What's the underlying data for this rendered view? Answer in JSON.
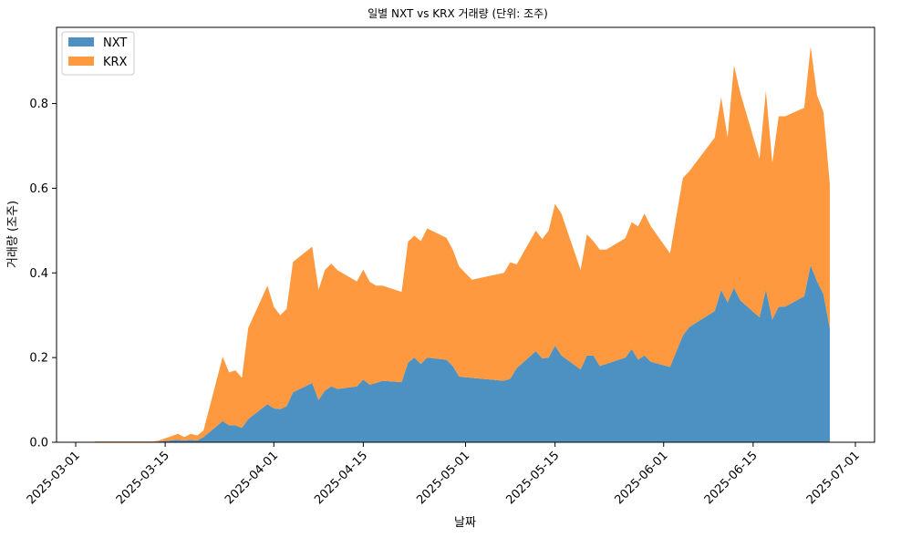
{
  "chart_data": {
    "type": "area",
    "stacked": true,
    "title": "일별 NXT vs KRX 거래량 (단위: 조주)",
    "xlabel": "날짜",
    "ylabel": "거래량 (조주)",
    "xlim": [
      "2025-02-26",
      "2025-07-04"
    ],
    "ylim": [
      0,
      0.98
    ],
    "x_ticks": [
      "2025-03-01",
      "2025-03-15",
      "2025-04-01",
      "2025-04-15",
      "2025-05-01",
      "2025-05-15",
      "2025-06-01",
      "2025-06-15",
      "2025-07-01"
    ],
    "y_ticks": [
      "0.0",
      "0.2",
      "0.4",
      "0.6",
      "0.8"
    ],
    "legend_position": "top-left",
    "grid": false,
    "colors": {
      "NXT": "#4c91c2",
      "KRX": "#ff993f"
    },
    "x": [
      "2025-03-04",
      "2025-03-05",
      "2025-03-06",
      "2025-03-07",
      "2025-03-10",
      "2025-03-11",
      "2025-03-12",
      "2025-03-13",
      "2025-03-14",
      "2025-03-17",
      "2025-03-18",
      "2025-03-19",
      "2025-03-20",
      "2025-03-21",
      "2025-03-24",
      "2025-03-25",
      "2025-03-26",
      "2025-03-27",
      "2025-03-28",
      "2025-03-31",
      "2025-04-01",
      "2025-04-02",
      "2025-04-03",
      "2025-04-04",
      "2025-04-07",
      "2025-04-08",
      "2025-04-09",
      "2025-04-10",
      "2025-04-11",
      "2025-04-14",
      "2025-04-15",
      "2025-04-16",
      "2025-04-17",
      "2025-04-18",
      "2025-04-21",
      "2025-04-22",
      "2025-04-23",
      "2025-04-24",
      "2025-04-25",
      "2025-04-28",
      "2025-04-29",
      "2025-04-30",
      "2025-05-02",
      "2025-05-07",
      "2025-05-08",
      "2025-05-09",
      "2025-05-12",
      "2025-05-13",
      "2025-05-14",
      "2025-05-15",
      "2025-05-16",
      "2025-05-19",
      "2025-05-20",
      "2025-05-21",
      "2025-05-22",
      "2025-05-23",
      "2025-05-26",
      "2025-05-27",
      "2025-05-28",
      "2025-05-29",
      "2025-05-30",
      "2025-06-02",
      "2025-06-04",
      "2025-06-05",
      "2025-06-09",
      "2025-06-10",
      "2025-06-11",
      "2025-06-12",
      "2025-06-13",
      "2025-06-16",
      "2025-06-17",
      "2025-06-18",
      "2025-06-19",
      "2025-06-20",
      "2025-06-23",
      "2025-06-24",
      "2025-06-25",
      "2025-06-26",
      "2025-06-27"
    ],
    "series": [
      {
        "name": "NXT",
        "values": [
          0.001,
          0.001,
          0.001,
          0.001,
          0.001,
          0.001,
          0.001,
          0.001,
          0.002,
          0.006,
          0.004,
          0.006,
          0.004,
          0.012,
          0.05,
          0.04,
          0.04,
          0.034,
          0.055,
          0.09,
          0.08,
          0.078,
          0.085,
          0.118,
          0.14,
          0.1,
          0.122,
          0.132,
          0.126,
          0.132,
          0.148,
          0.136,
          0.14,
          0.145,
          0.142,
          0.188,
          0.2,
          0.185,
          0.2,
          0.195,
          0.18,
          0.155,
          0.152,
          0.145,
          0.15,
          0.175,
          0.215,
          0.198,
          0.2,
          0.228,
          0.205,
          0.172,
          0.205,
          0.205,
          0.18,
          0.185,
          0.2,
          0.22,
          0.195,
          0.205,
          0.19,
          0.178,
          0.252,
          0.272,
          0.31,
          0.36,
          0.33,
          0.365,
          0.335,
          0.295,
          0.36,
          0.29,
          0.32,
          0.32,
          0.345,
          0.418,
          0.38,
          0.35,
          0.268
        ]
      },
      {
        "name": "KRX",
        "values": [
          0.001,
          0.001,
          0.001,
          0.001,
          0.001,
          0.001,
          0.001,
          0.001,
          0.002,
          0.014,
          0.008,
          0.014,
          0.012,
          0.016,
          0.152,
          0.125,
          0.13,
          0.118,
          0.215,
          0.28,
          0.24,
          0.222,
          0.23,
          0.308,
          0.322,
          0.26,
          0.285,
          0.29,
          0.28,
          0.248,
          0.26,
          0.243,
          0.23,
          0.225,
          0.213,
          0.286,
          0.288,
          0.29,
          0.305,
          0.288,
          0.275,
          0.26,
          0.232,
          0.255,
          0.275,
          0.245,
          0.285,
          0.282,
          0.3,
          0.335,
          0.335,
          0.235,
          0.286,
          0.27,
          0.275,
          0.27,
          0.282,
          0.3,
          0.315,
          0.335,
          0.32,
          0.268,
          0.372,
          0.368,
          0.41,
          0.455,
          0.39,
          0.525,
          0.49,
          0.375,
          0.47,
          0.37,
          0.45,
          0.45,
          0.445,
          0.517,
          0.44,
          0.43,
          0.342
        ]
      }
    ]
  }
}
